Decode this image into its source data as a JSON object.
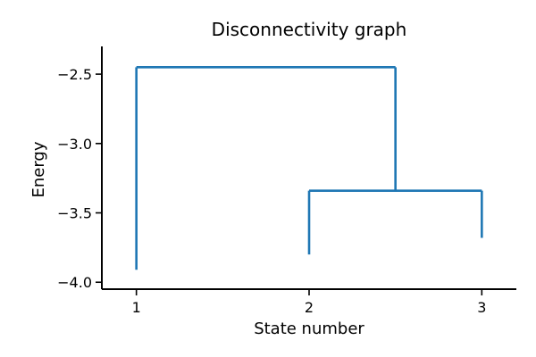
{
  "chart_data": {
    "type": "line",
    "title": "Disconnectivity graph",
    "xlabel": "State number",
    "ylabel": "Energy",
    "x_ticks": [
      1,
      2,
      3
    ],
    "x_tick_labels": [
      "1",
      "2",
      "3"
    ],
    "y_ticks": [
      -4.0,
      -3.5,
      -3.0,
      -2.5
    ],
    "y_tick_labels": [
      "−4.0",
      "−3.5",
      "−3.0",
      "−2.5"
    ],
    "xlim": [
      0.8,
      3.2
    ],
    "ylim": [
      -4.05,
      -2.3
    ],
    "grid": false,
    "colors": {
      "line": "#1f77b4"
    },
    "states": [
      {
        "state": 1,
        "energy": -3.91
      },
      {
        "state": 2,
        "energy": -3.8
      },
      {
        "state": 3,
        "energy": -3.68
      }
    ],
    "merges": [
      {
        "left_x": 2,
        "right_x": 3,
        "energy": -3.34,
        "merged_x": 2.5
      },
      {
        "left_x": 1,
        "right_x": 2.5,
        "energy": -2.45,
        "merged_x": 1.75
      }
    ]
  }
}
